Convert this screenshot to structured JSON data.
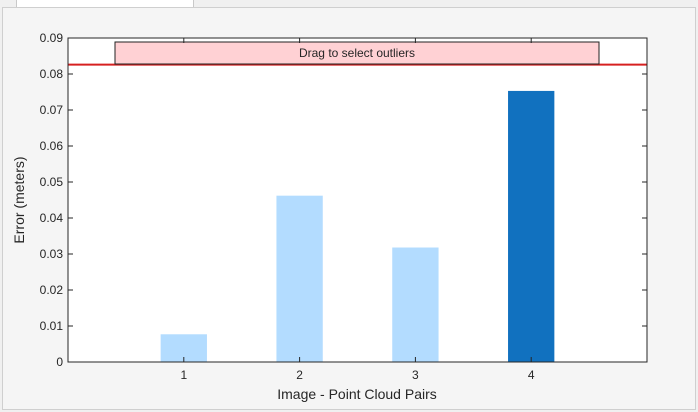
{
  "chart_data": {
    "type": "bar",
    "categories": [
      "1",
      "2",
      "3",
      "4"
    ],
    "values": [
      0.0077,
      0.0462,
      0.0318,
      0.0753
    ],
    "selected": [
      false,
      false,
      false,
      true
    ],
    "xlabel": "Image - Point Cloud Pairs",
    "ylabel": "Error (meters)",
    "ylim": [
      0,
      0.09
    ],
    "yticks": [
      "0",
      "0.01",
      "0.02",
      "0.03",
      "0.04",
      "0.05",
      "0.06",
      "0.07",
      "0.08",
      "0.09"
    ],
    "threshold": 0.0826,
    "grid": false,
    "colors": {
      "bar": "#b3dcff",
      "bar_selected": "#1171bf",
      "threshold": "#d62020",
      "banner_fill": "#ffd1d4",
      "banner_border": "#222222"
    }
  },
  "banner": {
    "label": "Drag to select outliers"
  }
}
